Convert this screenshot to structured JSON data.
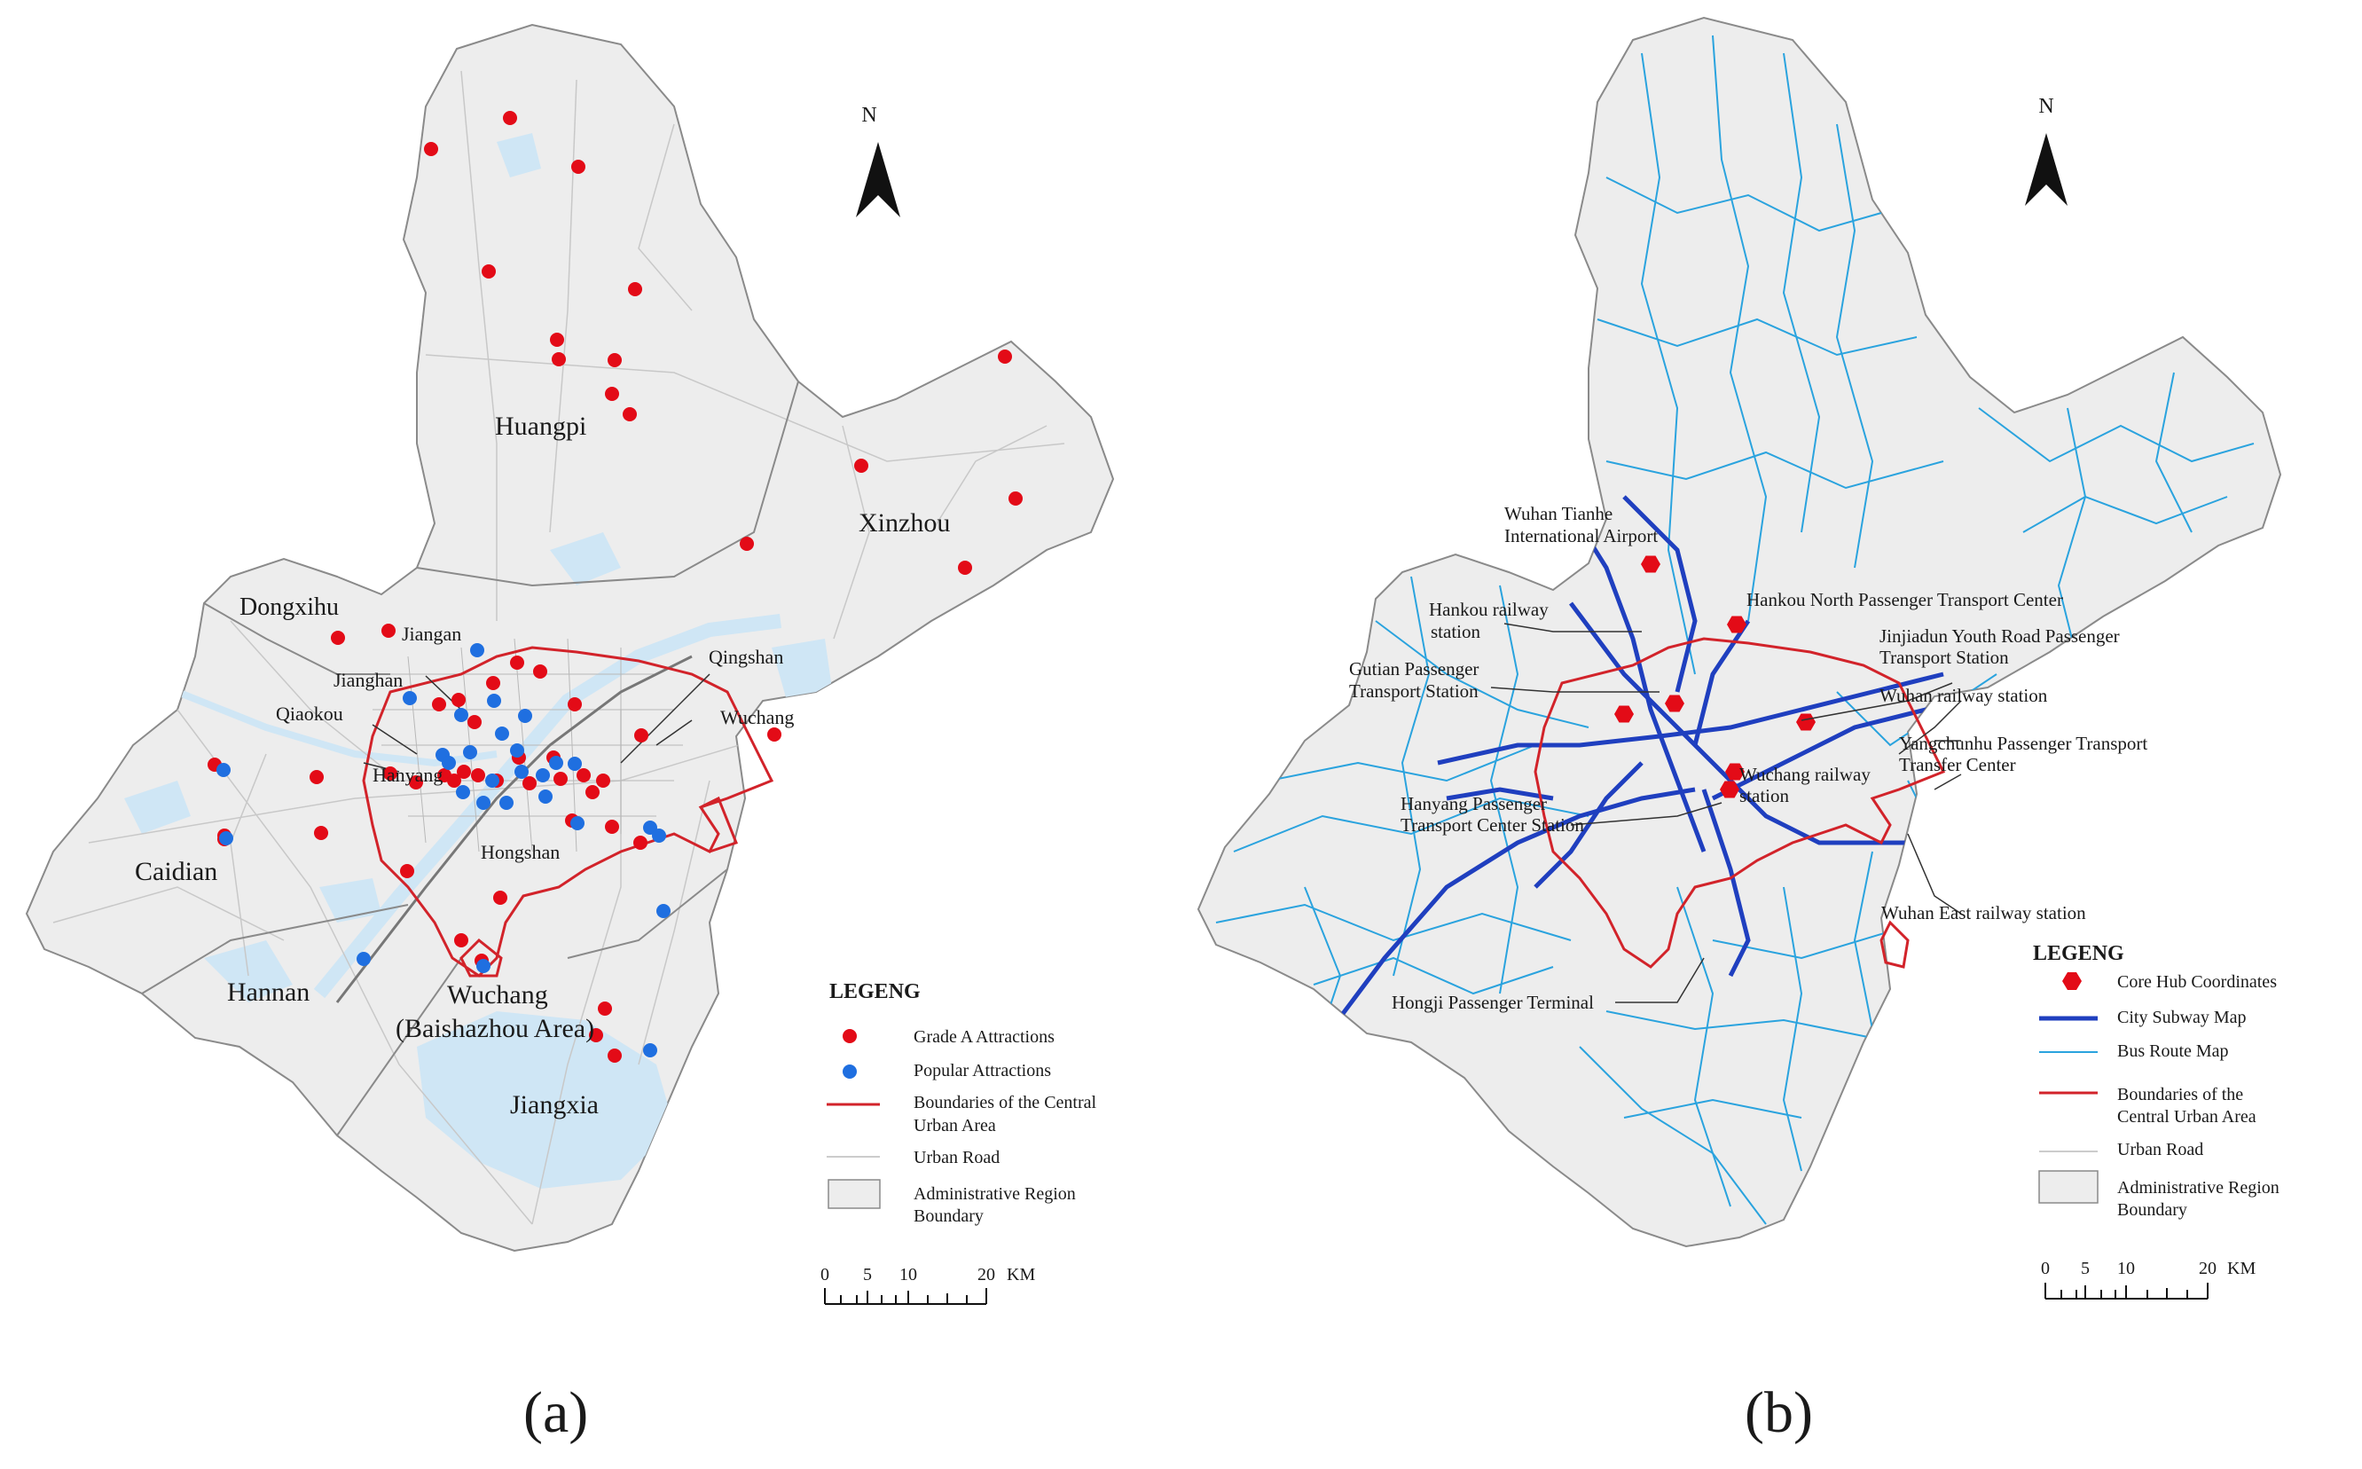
{
  "panel_a": {
    "north_label": "N",
    "places": {
      "huangpi": "Huangpi",
      "xinzhou": "Xinzhou",
      "dongxihu": "Dongxihu",
      "jiangan": "Jiangan",
      "jianghan": "Jianghan",
      "qiaokou": "Qiaokou",
      "qingshan": "Qingshan",
      "wuchang": "Wuchang",
      "hanyang": "Hanyang",
      "hongshan": "Hongshan",
      "caidian": "Caidian",
      "hannan": "Hannan",
      "wuchang_bsz_1": "Wuchang",
      "wuchang_bsz_2": "(Baishazhou Area)",
      "jiangxia": "Jiangxia"
    },
    "legend": {
      "title": "LEGENG",
      "grade_a": "Grade A Attractions",
      "popular": "Popular Attractions",
      "boundary_1": "Boundaries of the Central",
      "boundary_2": "Urban Area",
      "road": "Urban Road",
      "admin_1": "Administrative Region",
      "admin_2": "Boundary"
    },
    "scale": {
      "t0": "0",
      "t5": "5",
      "t10": "10",
      "t20": "20",
      "unit": "KM"
    },
    "caption": "(a)"
  },
  "panel_b": {
    "north_label": "N",
    "stations": {
      "airport_1": "Wuhan Tianhe",
      "airport_2": "International Airport",
      "hankou_rail_1": "Hankou railway",
      "hankou_rail_2": "station",
      "gutian_1": "Gutian Passenger",
      "gutian_2": "Transport Station",
      "hankou_north": "Hankou North Passenger Transport Center",
      "jinjiadun_1": "Jinjiadun Youth Road Passenger",
      "jinjiadun_2": "Transport Station",
      "wuhan_rail": "Wuhan railway station",
      "yangchunhu_1": "Yangchunhu Passenger Transport",
      "yangchunhu_2": "Transfer Center",
      "wuchang_rail_1": "Wuchang railway",
      "wuchang_rail_2": "station",
      "hanyang_1": "Hanyang Passenger",
      "hanyang_2": "Transport Center Station",
      "wuhan_east": "Wuhan East railway station",
      "hongji": "Hongji Passenger Terminal"
    },
    "legend": {
      "title": "LEGENG",
      "hub": "Core Hub Coordinates",
      "subway": "City Subway Map",
      "bus": "Bus Route Map",
      "boundary_1": "Boundaries of the",
      "boundary_2": "Central Urban Area",
      "road": "Urban Road",
      "admin_1": "Administrative Region",
      "admin_2": "Boundary"
    },
    "scale": {
      "t0": "0",
      "t5": "5",
      "t10": "10",
      "t20": "20",
      "unit": "KM"
    },
    "caption": "(b)"
  },
  "colors": {
    "land": "#ededed",
    "admin_line": "#8a8a8a",
    "water": "#cfe6f5",
    "boundary": "#d2232a",
    "grade_a": "#e30b17",
    "popular": "#1f6fe0",
    "subway": "#1f3fbf",
    "bus": "#2aa3de",
    "road": "#c8c8c8"
  },
  "icons": {
    "north_arrow": "north-arrow-icon",
    "hub": "hexagon-icon"
  }
}
